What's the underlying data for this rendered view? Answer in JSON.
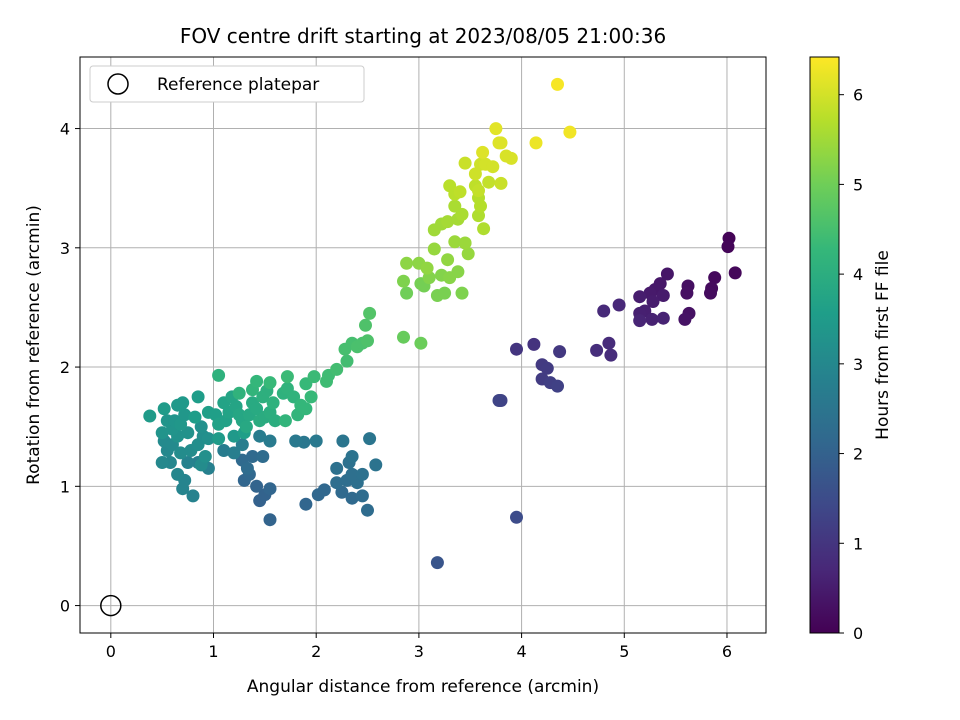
{
  "chart_data": {
    "type": "scatter",
    "title": "FOV centre drift starting at 2023/08/05 21:00:36",
    "xlabel": "Angular distance from reference (arcmin)",
    "ylabel": "Rotation from reference (arcmin)",
    "xlim": [
      -0.3,
      6.38
    ],
    "ylim": [
      -0.23,
      4.6
    ],
    "xticks": [
      0,
      1,
      2,
      3,
      4,
      5,
      6
    ],
    "yticks": [
      0,
      1,
      2,
      3,
      4
    ],
    "grid": true,
    "legend": {
      "placement": "top-left",
      "entries": [
        "Reference platepar"
      ]
    },
    "reference_point": {
      "x": 0,
      "y": 0
    },
    "colorbar": {
      "label": "Hours from first FF file",
      "range": [
        0,
        6.42
      ],
      "ticks": [
        0,
        1,
        2,
        3,
        4,
        5,
        6
      ],
      "colormap": "viridis",
      "stops": [
        "#440154",
        "#482878",
        "#3e4989",
        "#31688e",
        "#26828e",
        "#1f9e89",
        "#35b779",
        "#6ece58",
        "#b5de2b",
        "#fde725"
      ]
    },
    "points": [
      [
        6.02,
        3.08,
        0.05
      ],
      [
        6.01,
        3.01,
        0.08
      ],
      [
        6.08,
        2.79,
        0.12
      ],
      [
        5.88,
        2.75,
        0.15
      ],
      [
        5.85,
        2.66,
        0.18
      ],
      [
        5.84,
        2.62,
        0.2
      ],
      [
        5.62,
        2.68,
        0.25
      ],
      [
        5.61,
        2.62,
        0.28
      ],
      [
        5.63,
        2.45,
        0.3
      ],
      [
        5.59,
        2.4,
        0.33
      ],
      [
        5.42,
        2.78,
        0.38
      ],
      [
        5.35,
        2.7,
        0.4
      ],
      [
        5.3,
        2.65,
        0.42
      ],
      [
        5.25,
        2.62,
        0.45
      ],
      [
        5.38,
        2.6,
        0.47
      ],
      [
        5.28,
        2.55,
        0.5
      ],
      [
        5.15,
        2.59,
        0.52
      ],
      [
        5.2,
        2.47,
        0.55
      ],
      [
        5.15,
        2.45,
        0.57
      ],
      [
        5.27,
        2.4,
        0.6
      ],
      [
        5.38,
        2.41,
        0.62
      ],
      [
        5.15,
        2.39,
        0.65
      ],
      [
        4.95,
        2.52,
        0.72
      ],
      [
        4.8,
        2.47,
        0.75
      ],
      [
        4.85,
        2.2,
        0.8
      ],
      [
        4.87,
        2.1,
        0.82
      ],
      [
        4.73,
        2.14,
        0.85
      ],
      [
        4.12,
        2.19,
        0.95
      ],
      [
        3.95,
        2.15,
        1.0
      ],
      [
        4.37,
        2.13,
        1.05
      ],
      [
        4.2,
        2.02,
        1.1
      ],
      [
        4.25,
        1.99,
        1.12
      ],
      [
        4.2,
        1.9,
        1.15
      ],
      [
        4.28,
        1.87,
        1.2
      ],
      [
        4.35,
        1.84,
        1.25
      ],
      [
        3.8,
        1.72,
        1.3
      ],
      [
        3.78,
        1.72,
        1.32
      ],
      [
        3.95,
        0.74,
        1.5
      ],
      [
        3.18,
        0.36,
        1.7
      ],
      [
        1.55,
        0.72,
        2.05
      ],
      [
        1.45,
        0.88,
        2.0
      ],
      [
        1.5,
        0.93,
        2.02
      ],
      [
        1.42,
        1.0,
        2.05
      ],
      [
        1.55,
        0.98,
        2.1
      ],
      [
        1.3,
        1.05,
        2.1
      ],
      [
        1.35,
        1.1,
        2.15
      ],
      [
        1.28,
        1.22,
        2.2
      ],
      [
        1.38,
        1.25,
        2.2
      ],
      [
        1.48,
        1.25,
        2.25
      ],
      [
        1.33,
        1.15,
        2.25
      ],
      [
        1.9,
        0.85,
        2.1
      ],
      [
        2.02,
        0.93,
        2.15
      ],
      [
        2.08,
        0.97,
        2.15
      ],
      [
        2.25,
        0.95,
        2.2
      ],
      [
        2.35,
        0.9,
        2.2
      ],
      [
        2.45,
        0.92,
        2.25
      ],
      [
        2.5,
        0.8,
        2.25
      ],
      [
        2.2,
        1.03,
        2.3
      ],
      [
        2.3,
        1.05,
        2.3
      ],
      [
        2.4,
        1.03,
        2.35
      ],
      [
        2.35,
        1.1,
        2.35
      ],
      [
        2.45,
        1.1,
        2.4
      ],
      [
        2.2,
        1.15,
        2.4
      ],
      [
        2.32,
        1.2,
        2.4
      ],
      [
        2.35,
        1.25,
        2.45
      ],
      [
        2.58,
        1.18,
        2.45
      ],
      [
        2.52,
        1.4,
        2.5
      ],
      [
        2.26,
        1.38,
        2.5
      ],
      [
        1.88,
        1.37,
        2.55
      ],
      [
        1.8,
        1.38,
        2.6
      ],
      [
        2.0,
        1.38,
        2.6
      ],
      [
        1.55,
        1.38,
        2.65
      ],
      [
        1.45,
        1.42,
        2.7
      ],
      [
        1.1,
        1.3,
        2.7
      ],
      [
        1.2,
        1.28,
        2.75
      ],
      [
        1.28,
        1.35,
        2.75
      ],
      [
        0.95,
        1.15,
        2.8
      ],
      [
        0.85,
        1.2,
        2.8
      ],
      [
        0.75,
        1.2,
        2.85
      ],
      [
        0.8,
        0.92,
        2.85
      ],
      [
        0.7,
        0.98,
        2.9
      ],
      [
        0.72,
        1.05,
        2.9
      ],
      [
        0.65,
        1.1,
        2.95
      ],
      [
        0.58,
        1.2,
        2.95
      ],
      [
        0.5,
        1.2,
        3.0
      ],
      [
        0.55,
        1.3,
        3.0
      ],
      [
        0.52,
        1.38,
        3.05
      ],
      [
        0.6,
        1.35,
        3.05
      ],
      [
        0.68,
        1.28,
        3.1
      ],
      [
        0.78,
        1.3,
        3.1
      ],
      [
        0.85,
        1.35,
        3.15
      ],
      [
        0.9,
        1.42,
        3.15
      ],
      [
        0.95,
        1.4,
        3.2
      ],
      [
        0.88,
        1.5,
        3.2
      ],
      [
        0.75,
        1.45,
        3.25
      ],
      [
        0.65,
        1.42,
        3.25
      ],
      [
        0.6,
        1.48,
        3.3
      ],
      [
        0.5,
        1.45,
        3.3
      ],
      [
        0.55,
        1.55,
        3.35
      ],
      [
        0.62,
        1.55,
        3.35
      ],
      [
        0.68,
        1.52,
        3.4
      ],
      [
        0.72,
        1.6,
        3.4
      ],
      [
        0.65,
        1.68,
        3.45
      ],
      [
        0.7,
        1.7,
        3.45
      ],
      [
        0.52,
        1.65,
        3.5
      ],
      [
        0.38,
        1.59,
        3.5
      ],
      [
        0.82,
        1.58,
        3.55
      ],
      [
        0.85,
        1.75,
        3.55
      ],
      [
        0.95,
        1.62,
        3.6
      ],
      [
        1.02,
        1.6,
        3.6
      ],
      [
        1.05,
        1.52,
        3.65
      ],
      [
        1.12,
        1.55,
        3.65
      ],
      [
        1.15,
        1.62,
        3.7
      ],
      [
        1.1,
        1.7,
        3.7
      ],
      [
        1.18,
        1.75,
        3.75
      ],
      [
        1.22,
        1.67,
        3.75
      ],
      [
        1.25,
        1.6,
        3.8
      ],
      [
        1.28,
        1.55,
        3.8
      ],
      [
        1.32,
        1.5,
        3.85
      ],
      [
        1.35,
        1.6,
        3.85
      ],
      [
        1.38,
        1.7,
        3.9
      ],
      [
        1.42,
        1.65,
        3.9
      ],
      [
        1.45,
        1.55,
        3.95
      ],
      [
        1.5,
        1.58,
        3.95
      ],
      [
        1.55,
        1.62,
        4.0
      ],
      [
        1.6,
        1.55,
        4.0
      ],
      [
        1.48,
        1.75,
        4.05
      ],
      [
        1.52,
        1.8,
        4.05
      ],
      [
        1.58,
        1.7,
        4.1
      ],
      [
        1.68,
        1.78,
        4.1
      ],
      [
        1.72,
        1.82,
        4.15
      ],
      [
        1.78,
        1.75,
        4.15
      ],
      [
        1.82,
        1.6,
        4.2
      ],
      [
        1.7,
        1.55,
        4.2
      ],
      [
        1.85,
        1.68,
        4.25
      ],
      [
        1.9,
        1.65,
        4.25
      ],
      [
        1.95,
        1.75,
        4.3
      ],
      [
        1.9,
        1.86,
        4.3
      ],
      [
        1.72,
        1.92,
        4.35
      ],
      [
        1.98,
        1.92,
        4.35
      ],
      [
        2.1,
        1.88,
        4.4
      ],
      [
        2.12,
        1.93,
        4.4
      ],
      [
        2.2,
        1.98,
        4.45
      ],
      [
        2.3,
        2.05,
        4.45
      ],
      [
        2.28,
        2.15,
        4.5
      ],
      [
        2.35,
        2.2,
        4.5
      ],
      [
        2.4,
        2.17,
        4.55
      ],
      [
        2.45,
        2.2,
        4.55
      ],
      [
        2.5,
        2.22,
        4.6
      ],
      [
        2.48,
        2.35,
        4.6
      ],
      [
        2.52,
        2.45,
        4.65
      ],
      [
        1.55,
        1.87,
        4.3
      ],
      [
        1.42,
        1.88,
        4.25
      ],
      [
        1.38,
        1.81,
        4.2
      ],
      [
        1.25,
        1.78,
        4.15
      ],
      [
        1.05,
        1.93,
        4.1
      ],
      [
        1.3,
        1.45,
        3.6
      ],
      [
        1.05,
        1.4,
        3.5
      ],
      [
        1.2,
        1.42,
        3.45
      ],
      [
        0.92,
        1.25,
        3.2
      ],
      [
        0.88,
        1.18,
        3.1
      ],
      [
        2.85,
        2.25,
        4.9
      ],
      [
        3.02,
        2.2,
        4.95
      ],
      [
        2.88,
        2.62,
        5.0
      ],
      [
        3.02,
        2.7,
        5.05
      ],
      [
        3.05,
        2.68,
        5.05
      ],
      [
        3.18,
        2.6,
        5.1
      ],
      [
        3.25,
        2.62,
        5.1
      ],
      [
        3.42,
        2.62,
        5.15
      ],
      [
        2.85,
        2.72,
        5.15
      ],
      [
        3.1,
        2.75,
        5.2
      ],
      [
        3.22,
        2.77,
        5.2
      ],
      [
        3.3,
        2.75,
        5.25
      ],
      [
        3.38,
        2.8,
        5.25
      ],
      [
        3.0,
        2.87,
        5.3
      ],
      [
        2.88,
        2.87,
        5.3
      ],
      [
        3.08,
        2.83,
        5.35
      ],
      [
        3.28,
        2.9,
        5.35
      ],
      [
        3.15,
        2.99,
        5.4
      ],
      [
        3.48,
        2.95,
        5.4
      ],
      [
        3.35,
        3.05,
        5.45
      ],
      [
        3.45,
        3.04,
        5.45
      ],
      [
        3.15,
        3.15,
        5.5
      ],
      [
        3.22,
        3.2,
        5.5
      ],
      [
        3.28,
        3.22,
        5.55
      ],
      [
        3.38,
        3.24,
        5.55
      ],
      [
        3.42,
        3.28,
        5.6
      ],
      [
        3.35,
        3.35,
        5.6
      ],
      [
        3.58,
        3.27,
        5.65
      ],
      [
        3.63,
        3.16,
        5.65
      ],
      [
        3.6,
        3.35,
        5.7
      ],
      [
        3.58,
        3.42,
        5.7
      ],
      [
        3.35,
        3.45,
        5.75
      ],
      [
        3.3,
        3.52,
        5.75
      ],
      [
        3.4,
        3.47,
        5.8
      ],
      [
        3.55,
        3.52,
        5.8
      ],
      [
        3.58,
        3.48,
        5.85
      ],
      [
        3.68,
        3.55,
        5.85
      ],
      [
        3.8,
        3.54,
        5.9
      ],
      [
        3.45,
        3.71,
        5.9
      ],
      [
        3.55,
        3.62,
        5.95
      ],
      [
        3.6,
        3.7,
        5.95
      ],
      [
        3.65,
        3.7,
        6.0
      ],
      [
        3.72,
        3.68,
        6.0
      ],
      [
        3.85,
        3.77,
        6.05
      ],
      [
        3.9,
        3.75,
        6.05
      ],
      [
        3.62,
        3.8,
        6.1
      ],
      [
        3.78,
        3.88,
        6.1
      ],
      [
        3.8,
        3.88,
        6.1
      ],
      [
        3.75,
        4.0,
        6.15
      ],
      [
        4.14,
        3.88,
        6.25
      ],
      [
        4.47,
        3.97,
        6.3
      ],
      [
        4.35,
        4.37,
        6.35
      ]
    ]
  }
}
